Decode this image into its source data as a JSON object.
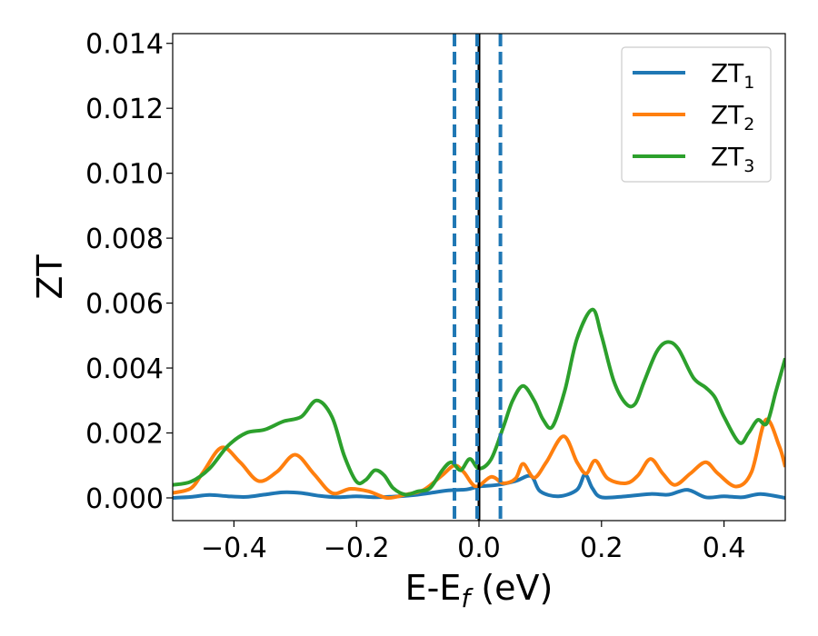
{
  "chart_data": {
    "type": "line",
    "title": "",
    "xlabel": {
      "main": "E-E",
      "sub": "f",
      "tail": " (eV)"
    },
    "ylabel": "ZT",
    "xlim": [
      -0.5,
      0.5
    ],
    "ylim": [
      -0.0007,
      0.0143
    ],
    "x_ticks": [
      -0.4,
      -0.2,
      0.0,
      0.2,
      0.4
    ],
    "x_tick_labels": [
      "−0.4",
      "−0.2",
      "0.0",
      "0.2",
      "0.4"
    ],
    "y_ticks": [
      0.0,
      0.002,
      0.004,
      0.006,
      0.008,
      0.01,
      0.012,
      0.014
    ],
    "y_tick_labels": [
      "0.000",
      "0.002",
      "0.004",
      "0.006",
      "0.008",
      "0.010",
      "0.012",
      "0.014"
    ],
    "grid": false,
    "legend_position": "top-right",
    "vertical_lines": [
      {
        "x": 0.0,
        "style": "solid",
        "color": "#000000"
      },
      {
        "x": -0.04,
        "style": "dashed",
        "color": "#1f77b4"
      },
      {
        "x": -0.003,
        "style": "dashed",
        "color": "#1f77b4"
      },
      {
        "x": 0.035,
        "style": "dashed",
        "color": "#1f77b4"
      }
    ],
    "series": [
      {
        "name": "ZT",
        "sub": "1",
        "color": "#1f77b4",
        "x": [
          -0.5,
          -0.47,
          -0.44,
          -0.41,
          -0.38,
          -0.35,
          -0.32,
          -0.29,
          -0.26,
          -0.23,
          -0.2,
          -0.17,
          -0.14,
          -0.11,
          -0.08,
          -0.05,
          -0.02,
          0.0,
          0.03,
          0.06,
          0.085,
          0.1,
          0.13,
          0.16,
          0.173,
          0.185,
          0.2,
          0.24,
          0.28,
          0.31,
          0.34,
          0.37,
          0.4,
          0.43,
          0.46,
          0.5
        ],
        "y": [
          0.0,
          3e-05,
          9e-05,
          5e-05,
          3e-05,
          0.0001,
          0.00017,
          0.00015,
          6e-05,
          2e-05,
          5e-05,
          2e-05,
          4e-05,
          8e-05,
          0.00015,
          0.00023,
          0.00026,
          0.00035,
          0.0004,
          0.00052,
          0.00067,
          0.0002,
          5e-05,
          0.00025,
          0.00072,
          0.0003,
          2e-05,
          5e-05,
          0.00012,
          0.0001,
          0.00025,
          2e-05,
          5e-05,
          2e-05,
          0.00012,
          0.0
        ]
      },
      {
        "name": "ZT",
        "sub": "2",
        "color": "#ff7f0e",
        "x": [
          -0.5,
          -0.47,
          -0.45,
          -0.42,
          -0.39,
          -0.36,
          -0.33,
          -0.3,
          -0.27,
          -0.24,
          -0.21,
          -0.18,
          -0.15,
          -0.12,
          -0.09,
          -0.06,
          -0.04,
          -0.025,
          -0.005,
          0.02,
          0.04,
          0.06,
          0.072,
          0.09,
          0.11,
          0.138,
          0.16,
          0.175,
          0.19,
          0.21,
          0.24,
          0.26,
          0.28,
          0.3,
          0.32,
          0.345,
          0.37,
          0.39,
          0.42,
          0.445,
          0.468,
          0.49,
          0.5
        ],
        "y": [
          0.00015,
          0.0003,
          0.0008,
          0.00155,
          0.0011,
          0.00052,
          0.0008,
          0.00133,
          0.00075,
          0.00015,
          0.00028,
          0.0002,
          0.0,
          0.0001,
          0.00025,
          0.0007,
          0.001,
          0.0008,
          0.00035,
          0.00065,
          0.00045,
          0.0006,
          0.00105,
          0.00062,
          0.0011,
          0.0019,
          0.0011,
          0.00075,
          0.00115,
          0.0006,
          0.00045,
          0.0007,
          0.0012,
          0.00075,
          0.0004,
          0.00075,
          0.0011,
          0.00075,
          0.00035,
          0.0008,
          0.0024,
          0.0016,
          0.00095
        ]
      },
      {
        "name": "ZT",
        "sub": "3",
        "color": "#2ca02c",
        "x": [
          -0.5,
          -0.47,
          -0.44,
          -0.41,
          -0.38,
          -0.35,
          -0.32,
          -0.29,
          -0.265,
          -0.24,
          -0.22,
          -0.2,
          -0.185,
          -0.17,
          -0.155,
          -0.14,
          -0.12,
          -0.1,
          -0.08,
          -0.06,
          -0.045,
          -0.03,
          -0.015,
          0.0,
          0.02,
          0.04,
          0.055,
          0.072,
          0.09,
          0.105,
          0.12,
          0.14,
          0.16,
          0.185,
          0.2,
          0.22,
          0.24,
          0.255,
          0.27,
          0.29,
          0.307,
          0.325,
          0.35,
          0.37,
          0.385,
          0.4,
          0.425,
          0.44,
          0.455,
          0.47,
          0.485,
          0.5
        ],
        "y": [
          0.0004,
          0.0005,
          0.0009,
          0.0016,
          0.002,
          0.0021,
          0.00235,
          0.0025,
          0.003,
          0.0025,
          0.0013,
          0.0005,
          0.00055,
          0.00085,
          0.0007,
          0.0003,
          0.0001,
          0.0002,
          0.0003,
          0.00085,
          0.0011,
          0.00085,
          0.0012,
          0.0009,
          0.0012,
          0.0022,
          0.003,
          0.00345,
          0.003,
          0.0024,
          0.0022,
          0.0033,
          0.0049,
          0.0058,
          0.005,
          0.0036,
          0.0029,
          0.0029,
          0.0036,
          0.0045,
          0.0048,
          0.0046,
          0.0037,
          0.0034,
          0.0031,
          0.0025,
          0.0017,
          0.002,
          0.0024,
          0.0023,
          0.0033,
          0.0043
        ]
      }
    ]
  }
}
